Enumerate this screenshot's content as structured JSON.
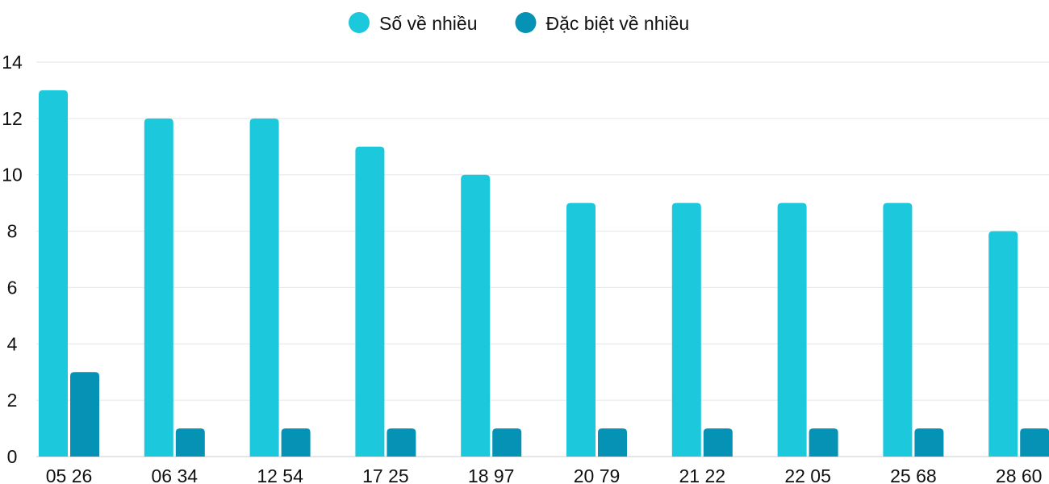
{
  "chart_data": {
    "type": "bar",
    "categories": [
      "05 26",
      "06 34",
      "12 54",
      "17 25",
      "18 97",
      "20 79",
      "21 22",
      "22 05",
      "25 68",
      "28 60"
    ],
    "series": [
      {
        "name": "Số về nhiều",
        "color": "#1bc8dc",
        "values": [
          13,
          12,
          12,
          11,
          10,
          9,
          9,
          9,
          9,
          8
        ]
      },
      {
        "name": "Đặc biệt về nhiều",
        "color": "#0592b5",
        "values": [
          3,
          1,
          1,
          1,
          1,
          1,
          1,
          1,
          1,
          1
        ]
      }
    ],
    "ylim": [
      0,
      14
    ],
    "yticks": [
      0,
      2,
      4,
      6,
      8,
      10,
      12,
      14
    ],
    "grid": true,
    "legend": "top-center"
  }
}
